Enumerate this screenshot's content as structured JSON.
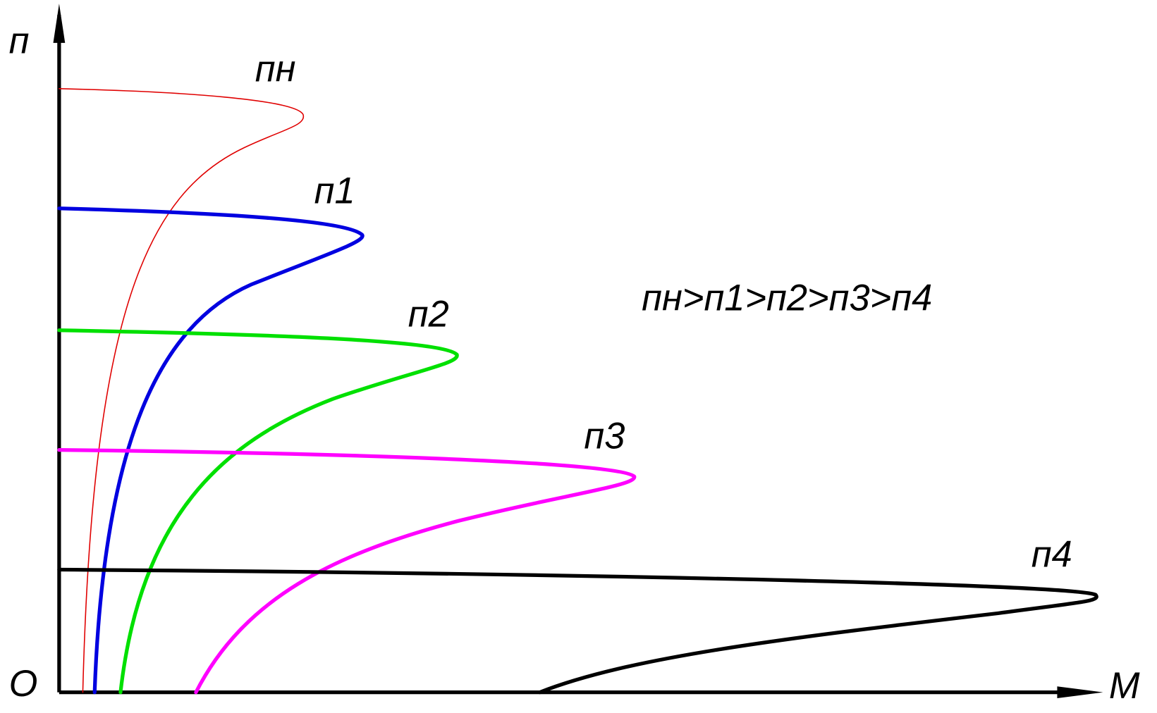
{
  "axes": {
    "y_label": "п",
    "x_label": "М",
    "origin": "О"
  },
  "curves": [
    {
      "label": "пн"
    },
    {
      "label": "п1"
    },
    {
      "label": "п2"
    },
    {
      "label": "п3"
    },
    {
      "label": "п4"
    }
  ],
  "relation": "пн>п1>п2>п3>п4"
}
